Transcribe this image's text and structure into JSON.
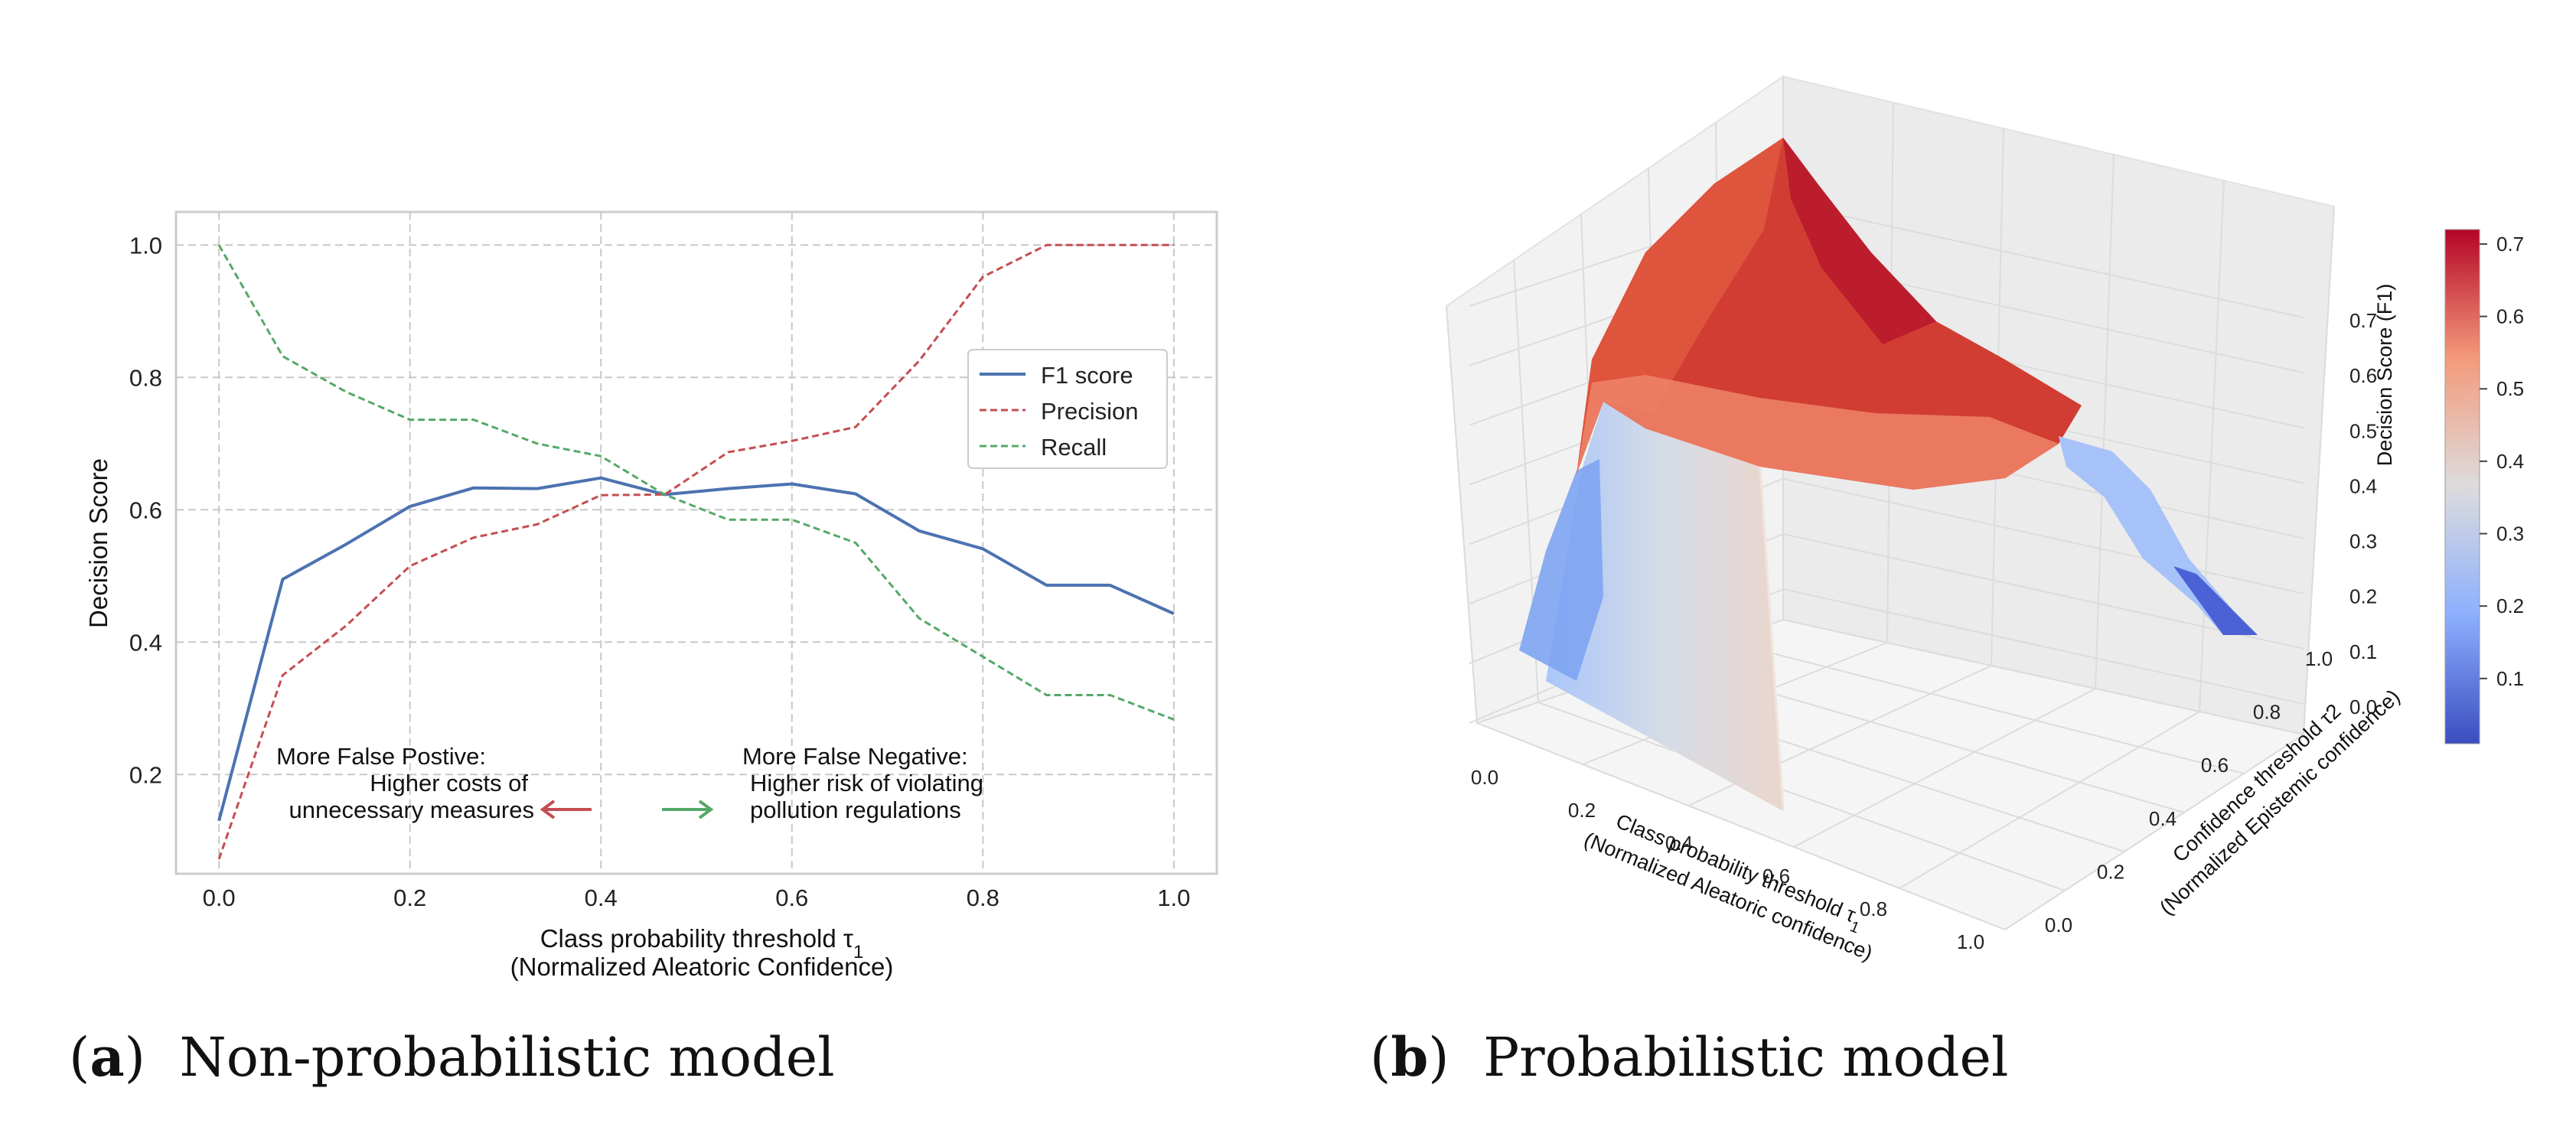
{
  "captions": {
    "a": {
      "letter": "a",
      "text": "Non-probabilistic model"
    },
    "b": {
      "letter": "b",
      "text": "Probabilistic model"
    }
  },
  "chart_data": [
    {
      "type": "line",
      "xlabel_line1": "Class probability threshold τ",
      "xlabel_sub": "1",
      "xlabel_line2": "(Normalized Aleatoric Confidence)",
      "ylabel": "Decision Score",
      "xlim": [
        -0.045,
        1.045
      ],
      "ylim": [
        0.05,
        1.05
      ],
      "xticks": [
        0.0,
        0.2,
        0.4,
        0.6,
        0.8,
        1.0
      ],
      "yticks": [
        0.2,
        0.4,
        0.6,
        0.8,
        1.0
      ],
      "grid": true,
      "legend_position": "upper right",
      "x": [
        0.0,
        0.0667,
        0.1333,
        0.2,
        0.2667,
        0.3333,
        0.4,
        0.4667,
        0.5333,
        0.6,
        0.6667,
        0.7333,
        0.8,
        0.8667,
        0.9333,
        1.0
      ],
      "series": [
        {
          "name": "F1 score",
          "color": "#4c72b0",
          "style": "solid",
          "values": [
            0.13,
            0.495,
            0.548,
            0.605,
            0.633,
            0.632,
            0.648,
            0.623,
            0.632,
            0.639,
            0.624,
            0.568,
            0.541,
            0.486,
            0.486,
            0.443
          ]
        },
        {
          "name": "Precision",
          "color": "#c44e52",
          "style": "dashed",
          "values": [
            0.072,
            0.35,
            0.425,
            0.515,
            0.558,
            0.578,
            0.622,
            0.623,
            0.687,
            0.704,
            0.725,
            0.825,
            0.952,
            1.0,
            1.0,
            1.0
          ]
        },
        {
          "name": "Recall",
          "color": "#55a868",
          "style": "dashed",
          "values": [
            1.0,
            0.832,
            0.778,
            0.736,
            0.736,
            0.7,
            0.681,
            0.623,
            0.585,
            0.585,
            0.55,
            0.436,
            0.378,
            0.32,
            0.32,
            0.283
          ]
        }
      ],
      "annotations": {
        "left": {
          "line1": "More False Postive:",
          "line2": "Higher costs of",
          "line3": "unnecessary measures",
          "arrow_color": "#c44e52"
        },
        "right": {
          "line1": "More False Negative:",
          "line2": "Higher risk of violating",
          "line3": "pollution regulations",
          "arrow_color": "#55a868"
        }
      }
    },
    {
      "type": "surface3d",
      "xlabel_line1": "Class probability threshold τ",
      "xlabel_sub": "1",
      "xlabel_line2": "(Normalized Aleatoric confidence)",
      "ylabel_line1": "Confidence threshold τ2",
      "ylabel_line2": "(Normalized Epistemic confidence)",
      "zlabel": "Decision Score (F1)",
      "xticks": [
        "0.0",
        "0.2",
        "0.4",
        "0.6",
        "0.8",
        "1.0"
      ],
      "yticks": [
        "0.0",
        "0.2",
        "0.4",
        "0.6",
        "0.8",
        "1.0"
      ],
      "zticks": [
        "0.0",
        "0.1",
        "0.2",
        "0.3",
        "0.4",
        "0.5",
        "0.6",
        "0.7"
      ],
      "zlim": [
        0.0,
        0.72
      ],
      "peak": {
        "x": 0.4,
        "y": 0.55,
        "z": 0.72
      },
      "colormap": "coolwarm",
      "colorbar": {
        "ticks": [
          "0.1",
          "0.2",
          "0.3",
          "0.4",
          "0.5",
          "0.6",
          "0.7"
        ],
        "range": [
          0.01,
          0.72
        ]
      }
    }
  ]
}
